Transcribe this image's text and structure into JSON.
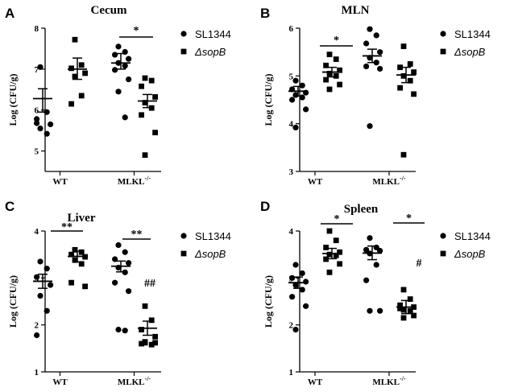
{
  "figure": {
    "group_labels": [
      "WT",
      "MLKL-/-"
    ]
  },
  "chart_data": [
    {
      "type": "scatter",
      "panel": "A",
      "title": "Cecum",
      "ylabel": "Log (CFU/g)",
      "ylim": [
        4.5,
        8
      ],
      "yticks": [
        5,
        6,
        7,
        8
      ],
      "categories": [
        "WT",
        "MLKL-/-"
      ],
      "series": [
        {
          "name": "SL1344",
          "marker": "circle",
          "groups": [
            {
              "points": [
                7.05,
                5.95,
                5.78,
                5.65,
                5.55,
                5.42,
                5.68
              ],
              "mean": 6.28,
              "sem_low": 5.95,
              "sem_high": 6.52
            },
            {
              "points": [
                7.55,
                7.42,
                7.35,
                7.25,
                7.15,
                7.08,
                6.98,
                6.75,
                6.45,
                5.82
              ],
              "mean": 7.15,
              "sem_low": 7.0,
              "sem_high": 7.38
            }
          ]
        },
        {
          "name": "ΔsopB",
          "marker": "square",
          "groups": [
            {
              "points": [
                7.72,
                7.1,
                7.02,
                6.9,
                6.82,
                6.35,
                6.15
              ],
              "mean": 7.0,
              "sem_low": 6.75,
              "sem_high": 7.27
            },
            {
              "points": [
                6.78,
                6.72,
                6.58,
                6.32,
                6.18,
                6.05,
                5.88,
                5.45,
                4.9
              ],
              "mean": 6.22,
              "sem_low": 6.06,
              "sem_high": 6.38
            }
          ]
        }
      ],
      "annotations": [
        {
          "text": "*",
          "between": [
            "MLKL-/- SL1344",
            "MLKL-/- ΔsopB"
          ]
        }
      ]
    },
    {
      "type": "scatter",
      "panel": "B",
      "title": "MLN",
      "ylabel": "Log (CFU/g)",
      "ylim": [
        3,
        6
      ],
      "yticks": [
        3,
        4,
        5,
        6
      ],
      "categories": [
        "WT",
        "MLKL-/-"
      ],
      "series": [
        {
          "name": "SL1344",
          "marker": "circle",
          "groups": [
            {
              "points": [
                4.9,
                4.8,
                4.72,
                4.65,
                4.6,
                4.55,
                4.5,
                4.3,
                3.92
              ],
              "mean": 4.68,
              "sem_low": 4.58,
              "sem_high": 4.78
            },
            {
              "points": [
                5.98,
                5.85,
                5.68,
                5.5,
                5.38,
                5.28,
                5.2,
                5.15,
                3.95
              ],
              "mean": 5.42,
              "sem_low": 5.28,
              "sem_high": 5.56
            }
          ]
        },
        {
          "name": "ΔsopB",
          "marker": "square",
          "groups": [
            {
              "points": [
                5.45,
                5.35,
                5.22,
                5.12,
                5.05,
                5.0,
                4.92,
                4.82,
                4.72
              ],
              "mean": 5.08,
              "sem_low": 4.98,
              "sem_high": 5.18
            },
            {
              "points": [
                5.62,
                5.25,
                5.18,
                5.08,
                5.0,
                4.9,
                4.75,
                4.62,
                3.35
              ],
              "mean": 5.02,
              "sem_low": 4.86,
              "sem_high": 5.18
            }
          ]
        }
      ],
      "annotations": [
        {
          "text": "*",
          "between": [
            "WT SL1344",
            "WT ΔsopB"
          ]
        }
      ]
    },
    {
      "type": "scatter",
      "panel": "C",
      "title": "Liver",
      "ylabel": "Log (CFU/g)",
      "ylim": [
        1,
        4
      ],
      "yticks": [
        1,
        2,
        3,
        4
      ],
      "categories": [
        "WT",
        "MLKL-/-"
      ],
      "series": [
        {
          "name": "SL1344",
          "marker": "circle",
          "groups": [
            {
              "points": [
                3.35,
                3.2,
                3.02,
                2.85,
                2.62,
                2.3,
                1.78
              ],
              "mean": 2.93,
              "sem_low": 2.78,
              "sem_high": 3.08
            },
            {
              "points": [
                3.7,
                3.55,
                3.4,
                3.32,
                3.22,
                3.12,
                2.9,
                2.72,
                1.9,
                1.88
              ],
              "mean": 3.25,
              "sem_low": 3.13,
              "sem_high": 3.36
            }
          ]
        },
        {
          "name": "ΔsopB",
          "marker": "square",
          "groups": [
            {
              "points": [
                3.6,
                3.55,
                3.5,
                3.45,
                3.38,
                3.3,
                2.9,
                2.82
              ],
              "mean": 3.46,
              "sem_low": 3.34,
              "sem_high": 3.57
            },
            {
              "points": [
                2.4,
                2.1,
                1.9,
                1.75,
                1.62,
                1.58,
                1.6,
                1.62,
                1.64
              ],
              "mean": 1.93,
              "sem_low": 1.78,
              "sem_high": 2.08
            }
          ]
        }
      ],
      "annotations": [
        {
          "text": "**",
          "between": [
            "WT SL1344",
            "WT ΔsopB"
          ]
        },
        {
          "text": "**",
          "between": [
            "MLKL-/- SL1344",
            "MLKL-/- ΔsopB"
          ]
        },
        {
          "text": "##",
          "above": "MLKL-/- ΔsopB"
        }
      ]
    },
    {
      "type": "scatter",
      "panel": "D",
      "title": "Spleen",
      "ylabel": "Log (CFU/g)",
      "ylim": [
        1,
        4
      ],
      "yticks": [
        1,
        2,
        3,
        4
      ],
      "categories": [
        "WT",
        "MLKL-/-"
      ],
      "series": [
        {
          "name": "SL1344",
          "marker": "circle",
          "groups": [
            {
              "points": [
                3.28,
                3.1,
                3.0,
                2.92,
                2.85,
                2.75,
                2.6,
                2.4,
                1.9
              ],
              "mean": 2.9,
              "sem_low": 2.78,
              "sem_high": 3.02
            },
            {
              "points": [
                3.85,
                3.65,
                3.6,
                3.58,
                3.52,
                3.28,
                2.95,
                2.3,
                2.3
              ],
              "mean": 3.53,
              "sem_low": 3.39,
              "sem_high": 3.68
            }
          ]
        },
        {
          "name": "ΔsopB",
          "marker": "square",
          "groups": [
            {
              "points": [
                4.0,
                3.8,
                3.65,
                3.55,
                3.5,
                3.48,
                3.4,
                3.3,
                3.12
              ],
              "mean": 3.52,
              "sem_low": 3.41,
              "sem_high": 3.63
            },
            {
              "points": [
                2.75,
                2.55,
                2.42,
                2.38,
                2.32,
                2.3,
                2.35,
                2.2,
                2.15
              ],
              "mean": 2.38,
              "sem_low": 2.24,
              "sem_high": 2.52
            }
          ]
        }
      ],
      "annotations": [
        {
          "text": "*",
          "between": [
            "WT SL1344",
            "WT ΔsopB"
          ]
        },
        {
          "text": "*",
          "between": [
            "MLKL-/- SL1344",
            "MLKL-/- ΔsopB"
          ]
        },
        {
          "text": "#",
          "above": "MLKL-/- ΔsopB"
        }
      ]
    }
  ]
}
